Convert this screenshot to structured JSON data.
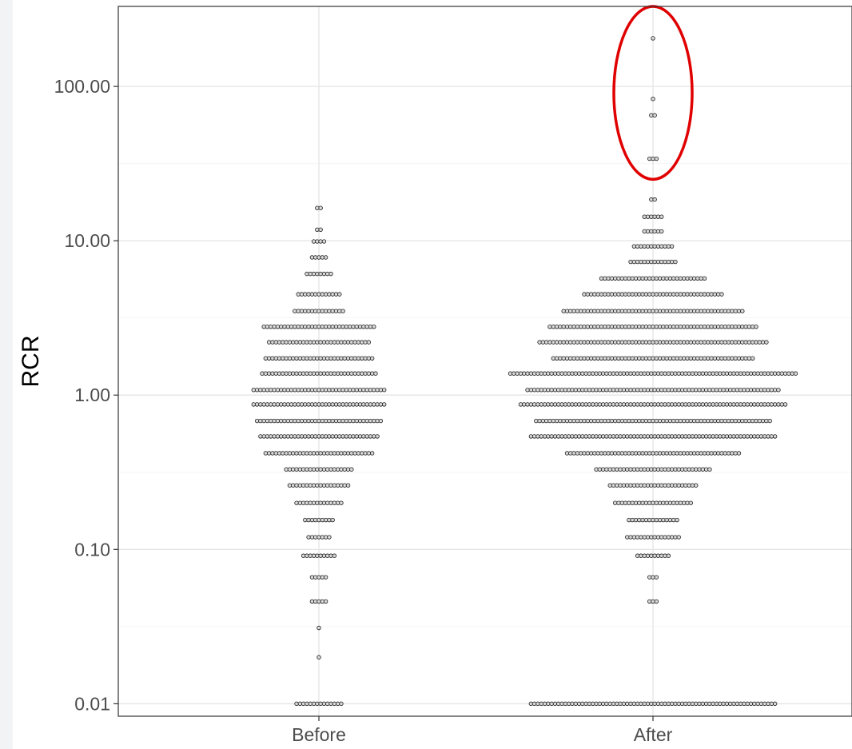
{
  "chart_data": {
    "type": "scatter",
    "subtype": "dotplot",
    "title": "",
    "xlabel": "",
    "ylabel": "RCR",
    "y_scale": "log10",
    "ylim": [
      0.0083,
      330
    ],
    "grid": true,
    "categories": [
      "Before",
      "After"
    ],
    "y_ticks": [
      {
        "value": 0.01,
        "label": "0.01"
      },
      {
        "value": 0.1,
        "label": "0.10"
      },
      {
        "value": 1,
        "label": "1.00"
      },
      {
        "value": 10,
        "label": "10.00"
      },
      {
        "value": 100,
        "label": "100.00"
      }
    ],
    "series": [
      {
        "category": "Before",
        "bins": [
          {
            "y": 16.3,
            "count": 2
          },
          {
            "y": 11.8,
            "count": 2
          },
          {
            "y": 9.9,
            "count": 4
          },
          {
            "y": 7.8,
            "count": 5
          },
          {
            "y": 6.1,
            "count": 8
          },
          {
            "y": 4.5,
            "count": 13
          },
          {
            "y": 3.5,
            "count": 15
          },
          {
            "y": 2.77,
            "count": 33
          },
          {
            "y": 2.2,
            "count": 30
          },
          {
            "y": 1.73,
            "count": 32
          },
          {
            "y": 1.38,
            "count": 34
          },
          {
            "y": 1.08,
            "count": 39
          },
          {
            "y": 0.87,
            "count": 39
          },
          {
            "y": 0.68,
            "count": 37
          },
          {
            "y": 0.54,
            "count": 35
          },
          {
            "y": 0.42,
            "count": 32
          },
          {
            "y": 0.33,
            "count": 20
          },
          {
            "y": 0.26,
            "count": 18
          },
          {
            "y": 0.2,
            "count": 14
          },
          {
            "y": 0.155,
            "count": 9
          },
          {
            "y": 0.12,
            "count": 7
          },
          {
            "y": 0.091,
            "count": 10
          },
          {
            "y": 0.066,
            "count": 5
          },
          {
            "y": 0.046,
            "count": 5
          },
          {
            "y": 0.031,
            "count": 1
          },
          {
            "y": 0.02,
            "count": 1
          },
          {
            "y": 0.01,
            "count": 14
          }
        ]
      },
      {
        "category": "After",
        "bins": [
          {
            "y": 205,
            "count": 1
          },
          {
            "y": 83,
            "count": 1
          },
          {
            "y": 65,
            "count": 2
          },
          {
            "y": 34,
            "count": 3
          },
          {
            "y": 18.5,
            "count": 2
          },
          {
            "y": 14.3,
            "count": 6
          },
          {
            "y": 11.5,
            "count": 6
          },
          {
            "y": 9.2,
            "count": 12
          },
          {
            "y": 7.3,
            "count": 14
          },
          {
            "y": 5.7,
            "count": 31
          },
          {
            "y": 4.5,
            "count": 41
          },
          {
            "y": 3.5,
            "count": 53
          },
          {
            "y": 2.77,
            "count": 61
          },
          {
            "y": 2.2,
            "count": 67
          },
          {
            "y": 1.73,
            "count": 59
          },
          {
            "y": 1.38,
            "count": 84
          },
          {
            "y": 1.08,
            "count": 74
          },
          {
            "y": 0.87,
            "count": 78
          },
          {
            "y": 0.68,
            "count": 69
          },
          {
            "y": 0.54,
            "count": 72
          },
          {
            "y": 0.42,
            "count": 51
          },
          {
            "y": 0.33,
            "count": 34
          },
          {
            "y": 0.26,
            "count": 26
          },
          {
            "y": 0.2,
            "count": 23
          },
          {
            "y": 0.155,
            "count": 15
          },
          {
            "y": 0.12,
            "count": 16
          },
          {
            "y": 0.091,
            "count": 10
          },
          {
            "y": 0.066,
            "count": 3
          },
          {
            "y": 0.046,
            "count": 3
          },
          {
            "y": 0.01,
            "count": 72
          }
        ]
      }
    ],
    "annotations": [
      {
        "type": "ellipse",
        "category": "After",
        "y_range": [
          25,
          330
        ],
        "color": "#e00000"
      }
    ]
  }
}
